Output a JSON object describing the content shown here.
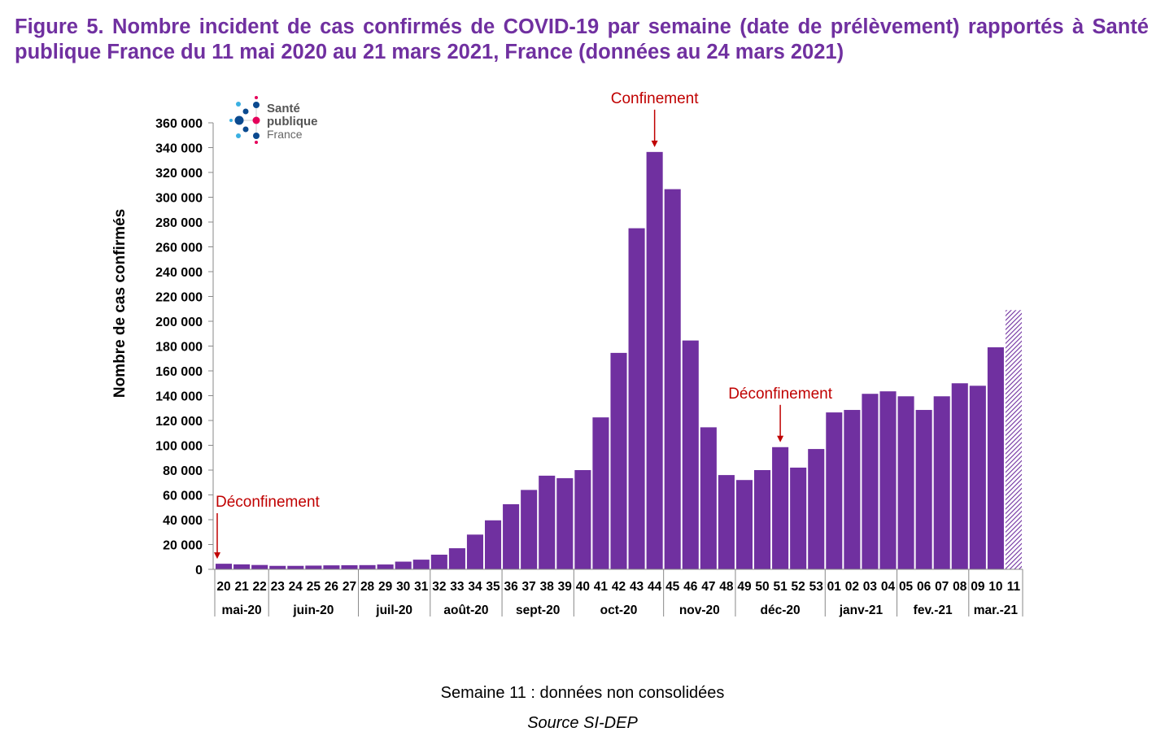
{
  "title": "Figure 5. Nombre incident de cas confirmés de COVID-19 par semaine (date de prélèvement) rapportés à Santé publique France du 11 mai 2020 au 21 mars 2021, France (données au 24 mars 2021)",
  "logo": {
    "line1": "Santé",
    "line2": "publique",
    "line3": "France"
  },
  "footnote": "Semaine 11 : données non consolidées",
  "source": "Source SI-DEP",
  "chart_data": {
    "type": "bar",
    "ylabel": "Nombre de cas confirmés",
    "xlabel": "",
    "ylim": [
      0,
      360000
    ],
    "yticks": [
      0,
      20000,
      40000,
      60000,
      80000,
      100000,
      120000,
      140000,
      160000,
      180000,
      200000,
      220000,
      240000,
      260000,
      280000,
      300000,
      320000,
      340000,
      360000
    ],
    "ytick_labels": [
      "0",
      "20 000",
      "40 000",
      "60 000",
      "80 000",
      "100 000",
      "120 000",
      "140 000",
      "160 000",
      "180 000",
      "200 000",
      "220 000",
      "240 000",
      "260 000",
      "280 000",
      "300 000",
      "320 000",
      "340 000",
      "360 000"
    ],
    "grid": false,
    "bar_color": "#7030a0",
    "categories": [
      "20",
      "21",
      "22",
      "23",
      "24",
      "25",
      "26",
      "27",
      "28",
      "29",
      "30",
      "31",
      "32",
      "33",
      "34",
      "35",
      "36",
      "37",
      "38",
      "39",
      "40",
      "41",
      "42",
      "43",
      "44",
      "45",
      "46",
      "47",
      "48",
      "49",
      "50",
      "51",
      "52",
      "53",
      "01",
      "02",
      "03",
      "04",
      "05",
      "06",
      "07",
      "08",
      "09",
      "10",
      "11"
    ],
    "values": [
      4500,
      4000,
      3500,
      2800,
      2800,
      3000,
      3200,
      3300,
      3400,
      3900,
      6200,
      7800,
      11800,
      17000,
      28000,
      39500,
      52500,
      64000,
      75500,
      73500,
      80000,
      122500,
      174500,
      275000,
      336500,
      306500,
      184500,
      114500,
      76000,
      72000,
      80000,
      98500,
      82000,
      97000,
      126500,
      128500,
      141500,
      143500,
      139500,
      128500,
      139500,
      150000,
      148000,
      179000,
      209000
    ],
    "hatched_categories": [
      "11"
    ],
    "months": [
      {
        "label": "mai-20",
        "weeks": 3
      },
      {
        "label": "juin-20",
        "weeks": 5
      },
      {
        "label": "juil-20",
        "weeks": 4
      },
      {
        "label": "août-20",
        "weeks": 4
      },
      {
        "label": "sept-20",
        "weeks": 4
      },
      {
        "label": "oct-20",
        "weeks": 5
      },
      {
        "label": "nov-20",
        "weeks": 4
      },
      {
        "label": "déc-20",
        "weeks": 5
      },
      {
        "label": "janv-21",
        "weeks": 4
      },
      {
        "label": "fev.-21",
        "weeks": 4
      },
      {
        "label": "mar.-21",
        "weeks": 3
      }
    ],
    "annotations": [
      {
        "text": "Déconfinement",
        "week": "20",
        "color": "#c00000"
      },
      {
        "text": "Confinement",
        "week": "44",
        "color": "#c00000"
      },
      {
        "text": "Déconfinement",
        "week": "51",
        "color": "#c00000"
      }
    ]
  }
}
